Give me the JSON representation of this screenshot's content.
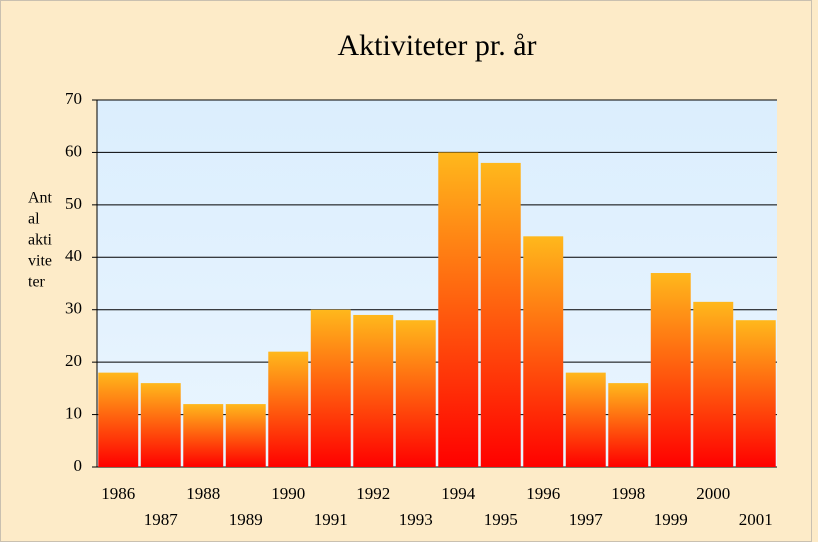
{
  "chart_data": {
    "type": "bar",
    "title": "Aktiviteter pr. år",
    "y_label_lines": [
      "Ant",
      "al",
      "akti",
      "vite",
      "ter"
    ],
    "categories": [
      "1986",
      "1987",
      "1988",
      "1989",
      "1990",
      "1991",
      "1992",
      "1993",
      "1994",
      "1995",
      "1996",
      "1997",
      "1998",
      "1999",
      "2000",
      "2001"
    ],
    "values": [
      18,
      16,
      12,
      12,
      22,
      30,
      29,
      28,
      60,
      58,
      44,
      18,
      16,
      37,
      31.5,
      28
    ],
    "colors": [
      "#ff0000",
      "#ffb81c"
    ],
    "ylim": [
      0,
      70
    ],
    "yticks": [
      0,
      10,
      20,
      30,
      40,
      50,
      60,
      70
    ],
    "grid": true
  }
}
